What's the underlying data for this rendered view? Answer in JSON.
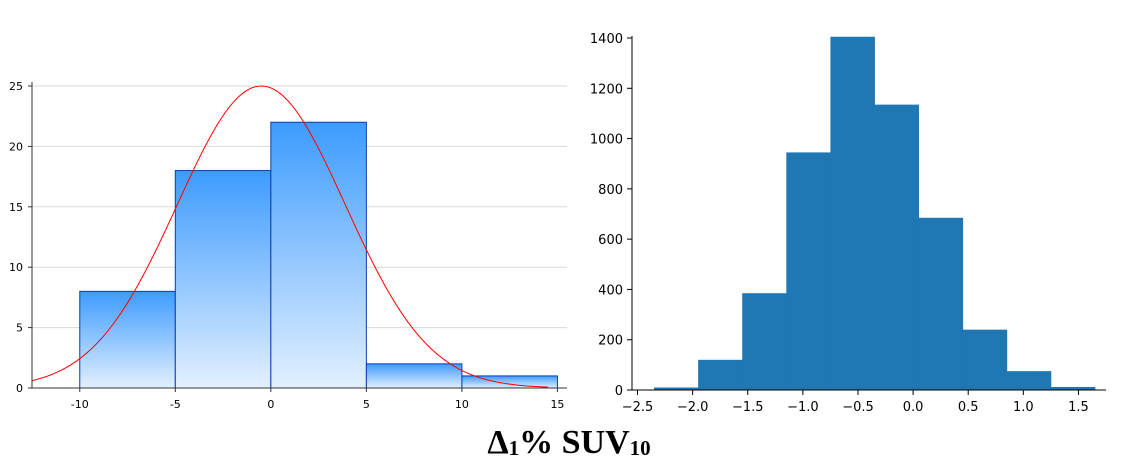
{
  "caption": {
    "main": "Δ",
    "sub1": "1",
    "mid": "% SUV",
    "sub2": "10"
  },
  "colors": {
    "left_bar_top": "#3d9bff",
    "left_bar_bottom": "#e3f0ff",
    "left_bar_stroke": "#0b3cb0",
    "curve": "#ff0000",
    "grid": "#d9d9d9",
    "right_bar": "#1f77b4"
  },
  "chart_data": [
    {
      "type": "bar",
      "title": "",
      "xlabel": "",
      "ylabel": "",
      "bins": [
        [
          -10,
          -5
        ],
        [
          -5,
          0
        ],
        [
          0,
          5
        ],
        [
          5,
          10
        ],
        [
          10,
          15
        ]
      ],
      "values": [
        8,
        18,
        22,
        2,
        1
      ],
      "xlim": [
        -12.5,
        15.5
      ],
      "ylim": [
        0,
        25
      ],
      "xticks": [
        -10,
        -5,
        0,
        5,
        10,
        15
      ],
      "yticks": [
        0,
        5,
        10,
        15,
        20,
        25
      ],
      "grid": true,
      "overlay_curve": {
        "type": "normal",
        "mean": -0.5,
        "sd": 4.4,
        "peak": 25
      }
    },
    {
      "type": "bar",
      "title": "",
      "xlabel": "",
      "ylabel": "",
      "bin_edges": [
        -2.35,
        -1.95,
        -1.55,
        -1.15,
        -0.75,
        -0.35,
        0.05,
        0.45,
        0.85,
        1.25,
        1.65
      ],
      "values": [
        10,
        120,
        385,
        945,
        1405,
        1135,
        685,
        240,
        75,
        12
      ],
      "xlim": [
        -2.55,
        1.75
      ],
      "ylim": [
        0,
        1400
      ],
      "xticks": [
        "−2.5",
        "−2.0",
        "−1.5",
        "−1.0",
        "−0.5",
        "0.0",
        "0.5",
        "1.0",
        "1.5"
      ],
      "yticks": [
        0,
        200,
        400,
        600,
        800,
        1000,
        1200,
        1400
      ],
      "grid": false
    }
  ]
}
